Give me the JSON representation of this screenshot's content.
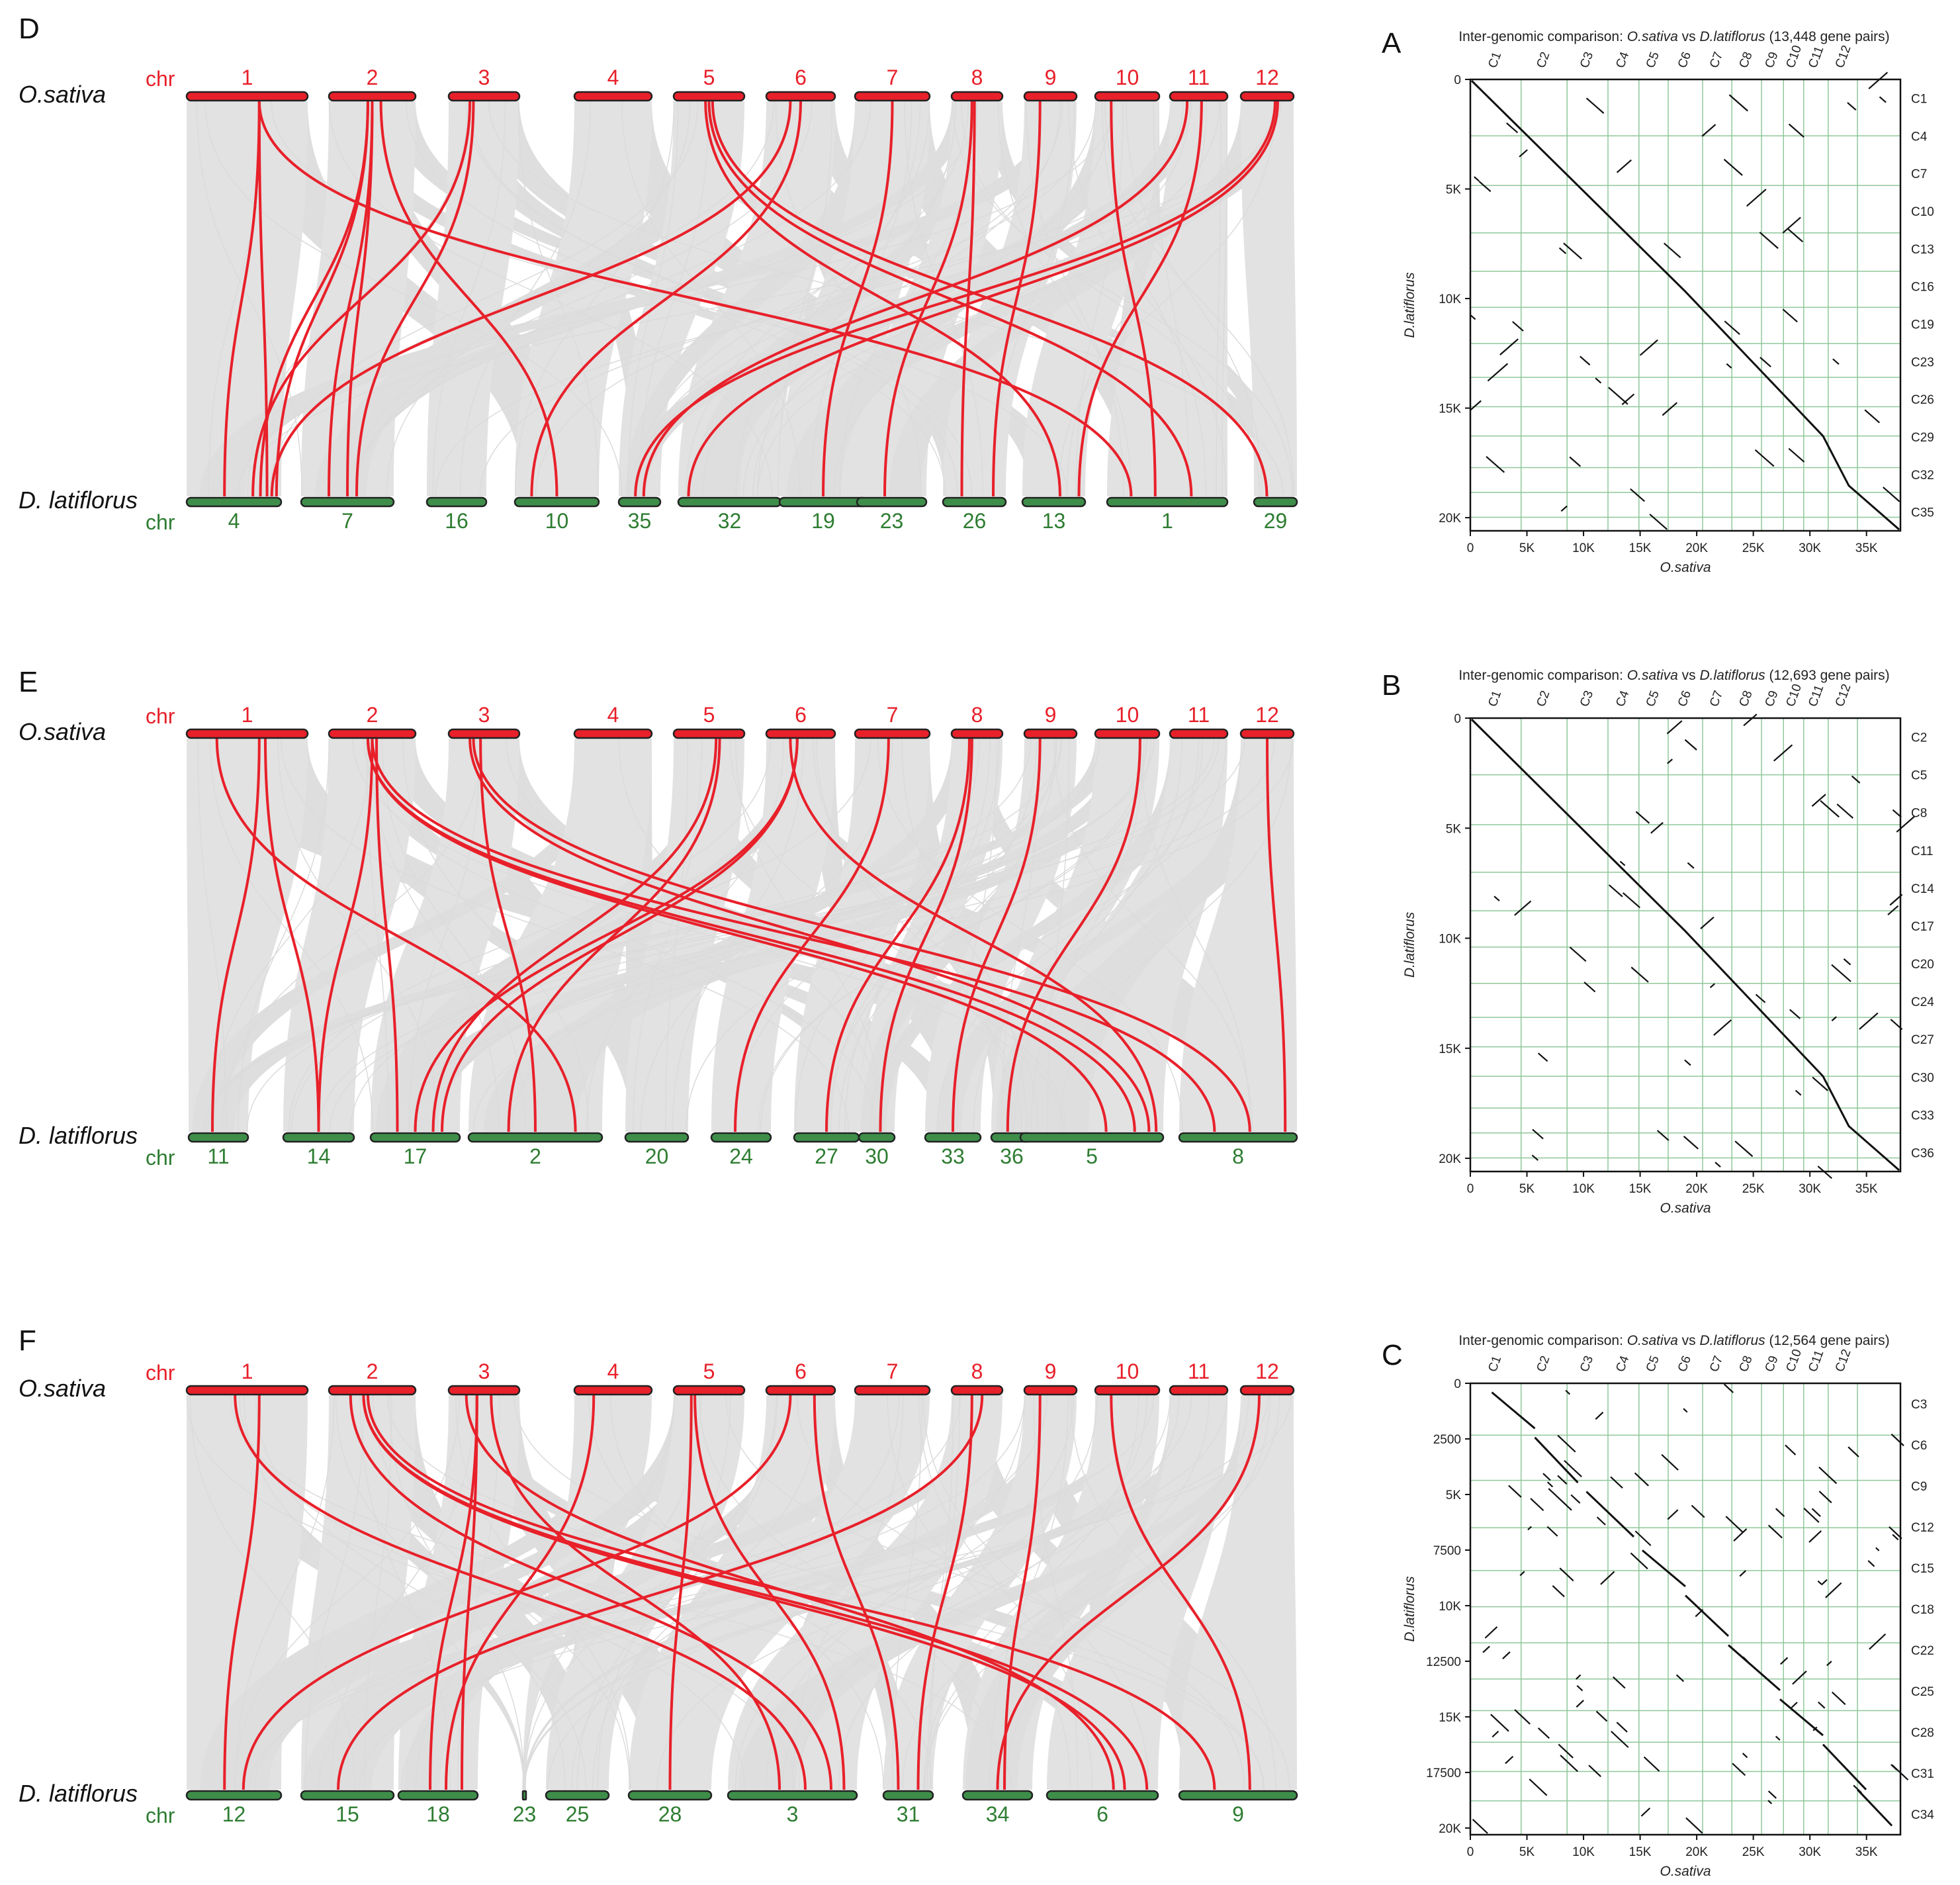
{
  "panels": [
    {
      "id": "D",
      "top_species": "O.sativa",
      "bottom_species": "D. latiflorus",
      "top_chr_label": "chr",
      "bottom_chr_label": "chr",
      "top_chromosomes": [
        "1",
        "2",
        "3",
        "4",
        "5",
        "6",
        "7",
        "8",
        "9",
        "10",
        "11",
        "12"
      ],
      "bottom_chromosomes": [
        "4",
        "7",
        "16",
        "10",
        "35",
        "32",
        "19",
        "23",
        "26",
        "13",
        "1",
        "29"
      ],
      "red_links": [
        [
          1,
          0,
          0.4
        ],
        [
          1,
          0,
          0.85
        ],
        [
          1,
          10,
          0.2
        ],
        [
          2,
          0,
          0.95
        ],
        [
          2,
          1,
          0.3
        ],
        [
          2,
          1,
          0.5
        ],
        [
          2,
          0,
          0.78
        ],
        [
          2,
          3,
          0.5
        ],
        [
          3,
          1,
          0.6
        ],
        [
          3,
          0,
          0.7
        ],
        [
          5,
          11,
          0.3
        ],
        [
          5,
          10,
          0.7
        ],
        [
          5,
          9,
          0.6
        ],
        [
          6,
          3,
          0.2
        ],
        [
          6,
          0,
          0.9
        ],
        [
          7,
          6,
          0.5
        ],
        [
          8,
          7,
          0.4
        ],
        [
          8,
          8,
          0.3
        ],
        [
          9,
          8,
          0.8
        ],
        [
          10,
          10,
          0.4
        ],
        [
          11,
          4,
          0.6
        ],
        [
          12,
          4,
          0.4
        ],
        [
          12,
          5,
          0.1
        ],
        [
          11,
          9,
          0.9
        ]
      ]
    },
    {
      "id": "E",
      "top_species": "O.sativa",
      "bottom_species": "D. latiflorus",
      "top_chr_label": "chr",
      "bottom_chr_label": "chr",
      "top_chromosomes": [
        "1",
        "2",
        "3",
        "4",
        "5",
        "6",
        "7",
        "8",
        "9",
        "10",
        "11",
        "12"
      ],
      "bottom_chromosomes": [
        "11",
        "14",
        "17",
        "2",
        "20",
        "24",
        "27",
        "30",
        "33",
        "36",
        "5",
        "8"
      ],
      "red_links": [
        [
          1,
          0,
          0.4
        ],
        [
          1,
          1,
          0.5
        ],
        [
          1,
          3,
          0.8
        ],
        [
          2,
          2,
          0.3
        ],
        [
          2,
          1,
          0.5
        ],
        [
          2,
          10,
          0.6
        ],
        [
          2,
          10,
          0.8
        ],
        [
          2,
          11,
          0.3
        ],
        [
          3,
          10,
          0.9
        ],
        [
          3,
          3,
          0.5
        ],
        [
          3,
          11,
          0.6
        ],
        [
          5,
          2,
          0.7
        ],
        [
          5,
          3,
          0.3
        ],
        [
          6,
          2,
          0.5
        ],
        [
          6,
          2,
          0.8
        ],
        [
          6,
          10,
          0.95
        ],
        [
          7,
          5,
          0.4
        ],
        [
          8,
          6,
          0.5
        ],
        [
          8,
          7,
          0.6
        ],
        [
          9,
          8,
          0.5
        ],
        [
          10,
          9,
          0.4
        ],
        [
          12,
          11,
          0.9
        ]
      ]
    },
    {
      "id": "F",
      "top_species": "O.sativa",
      "bottom_species": "D. latiflorus",
      "top_chr_label": "chr",
      "bottom_chr_label": "chr",
      "top_chromosomes": [
        "1",
        "2",
        "3",
        "4",
        "5",
        "6",
        "7",
        "8",
        "9",
        "10",
        "11",
        "12"
      ],
      "bottom_chromosomes": [
        "12",
        "15",
        "18",
        "23",
        "25",
        "28",
        "3",
        "31",
        "34",
        "6",
        "9"
      ],
      "red_links": [
        [
          1,
          0,
          0.4
        ],
        [
          1,
          6,
          0.6
        ],
        [
          2,
          10,
          0.3
        ],
        [
          2,
          9,
          0.9
        ],
        [
          2,
          6,
          0.8
        ],
        [
          2,
          9,
          0.7
        ],
        [
          3,
          2,
          0.4
        ],
        [
          3,
          2,
          0.8
        ],
        [
          3,
          9,
          0.6
        ],
        [
          3,
          6,
          0.4
        ],
        [
          4,
          2,
          0.6
        ],
        [
          5,
          6,
          0.9
        ],
        [
          5,
          5,
          0.5
        ],
        [
          6,
          0,
          0.6
        ],
        [
          6,
          7,
          0.3
        ],
        [
          8,
          7,
          0.7
        ],
        [
          8,
          1,
          0.4
        ],
        [
          9,
          8,
          0.6
        ],
        [
          10,
          10,
          0.6
        ],
        [
          12,
          8,
          0.5
        ]
      ]
    }
  ],
  "dotplots": [
    {
      "id": "A",
      "title_pre": "Inter-genomic comparison: ",
      "title_x": "O.sativa",
      "title_mid": " vs ",
      "title_y": "D.latiflorus",
      "title_post": " (13,448 gene pairs)",
      "top_labels": [
        "C1",
        "C2",
        "C3",
        "C4",
        "C5",
        "C6",
        "C7",
        "C8",
        "C9",
        "C10",
        "C11",
        "C12"
      ],
      "right_labels": [
        "C1",
        "C4",
        "C7",
        "C10",
        "C13",
        "C16",
        "C19",
        "C23",
        "C26",
        "C29",
        "C32",
        "C35"
      ],
      "x_ticks": [
        "0",
        "5K",
        "10K",
        "15K",
        "20K",
        "25K",
        "30K",
        "35K"
      ],
      "y_ticks": [
        "0",
        "5K",
        "10K",
        "15K",
        "20K"
      ],
      "xlabel": "O.sativa",
      "ylabel": "D.latiflorus",
      "diagonal": "main"
    },
    {
      "id": "B",
      "title_pre": "Inter-genomic comparison: ",
      "title_x": "O.sativa",
      "title_mid": " vs ",
      "title_y": "D.latiflorus",
      "title_post": " (12,693 gene pairs)",
      "top_labels": [
        "C1",
        "C2",
        "C3",
        "C4",
        "C5",
        "C6",
        "C7",
        "C8",
        "C9",
        "C10",
        "C11",
        "C12"
      ],
      "right_labels": [
        "C2",
        "C5",
        "C8",
        "C11",
        "C14",
        "C17",
        "C20",
        "C24",
        "C27",
        "C30",
        "C33",
        "C36"
      ],
      "x_ticks": [
        "0",
        "5K",
        "10K",
        "15K",
        "20K",
        "25K",
        "30K",
        "35K"
      ],
      "y_ticks": [
        "0",
        "5K",
        "10K",
        "15K",
        "20K"
      ],
      "xlabel": "O.sativa",
      "ylabel": "D.latiflorus",
      "diagonal": "main"
    },
    {
      "id": "C",
      "title_pre": "Inter-genomic comparison: ",
      "title_x": "O.sativa",
      "title_mid": " vs ",
      "title_y": "D.latiflorus",
      "title_post": " (12,564 gene pairs)",
      "top_labels": [
        "C1",
        "C2",
        "C3",
        "C4",
        "C5",
        "C6",
        "C7",
        "C8",
        "C9",
        "C10",
        "C11",
        "C12"
      ],
      "right_labels": [
        "C3",
        "C6",
        "C9",
        "C12",
        "C15",
        "C18",
        "C22",
        "C25",
        "C28",
        "C31",
        "C34"
      ],
      "x_ticks": [
        "0",
        "5K",
        "10K",
        "15K",
        "20K",
        "25K",
        "30K",
        "35K"
      ],
      "y_ticks": [
        "0",
        "2500",
        "5K",
        "7500",
        "10K",
        "12500",
        "15K",
        "17500",
        "20K"
      ],
      "xlabel": "O.sativa",
      "ylabel": "D.latiflorus",
      "diagonal": "scattered"
    }
  ]
}
